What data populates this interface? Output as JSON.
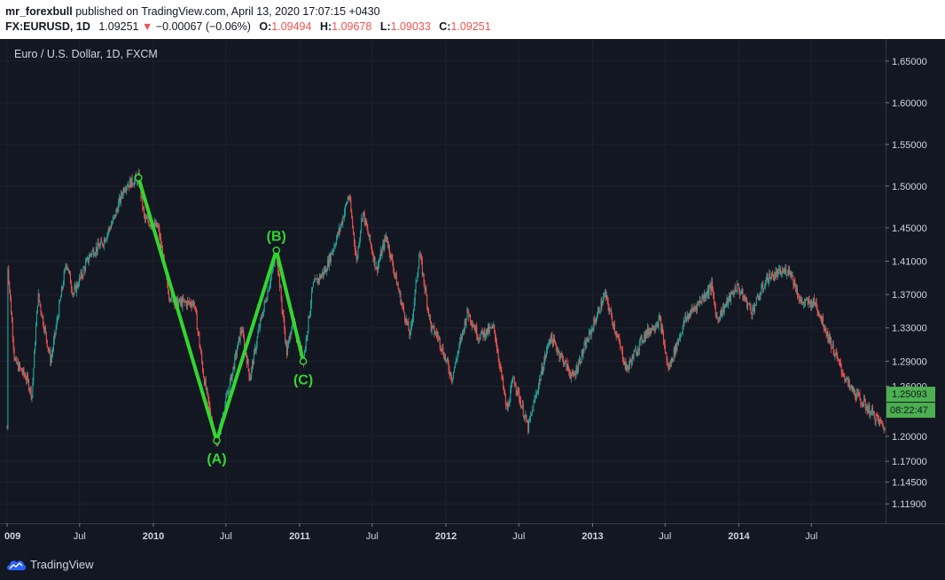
{
  "header": {
    "author": "mr_forexbull",
    "published_text": "published on TradingView.com, April 13, 2020 17:07:15 +0430",
    "symbol": "FX:EURUSD, 1D",
    "last": "1.09251",
    "change": "−0.00067 (−0.06%)",
    "open_label": "O:",
    "open": "1.09494",
    "high_label": "H:",
    "high": "1.09678",
    "low_label": "L:",
    "low": "1.09033",
    "close_label": "C:",
    "close": "1.09251"
  },
  "chart_data": {
    "type": "candlestick",
    "title": "Euro / U.S. Dollar, 1D, FXCM",
    "x_range": [
      "2009-01-01",
      "2014-12-31"
    ],
    "ylim": [
      1.1,
      1.67
    ],
    "y_ticks": [
      "1.65000",
      "1.60000",
      "1.55000",
      "1.50000",
      "1.45000",
      "1.41000",
      "1.37000",
      "1.33000",
      "1.29000",
      "1.26000",
      "1.20000",
      "1.17000",
      "1.14500",
      "1.11900"
    ],
    "x_ticks": [
      {
        "label": "009",
        "date": "2009-01-01"
      },
      {
        "label": "Jul",
        "date": "2009-07-01"
      },
      {
        "label": "2010",
        "date": "2010-01-01"
      },
      {
        "label": "Jul",
        "date": "2010-07-01"
      },
      {
        "label": "2011",
        "date": "2011-01-01"
      },
      {
        "label": "Jul",
        "date": "2011-07-01"
      },
      {
        "label": "2012",
        "date": "2012-01-01"
      },
      {
        "label": "Jul",
        "date": "2012-07-01"
      },
      {
        "label": "2013",
        "date": "2013-01-01"
      },
      {
        "label": "Jul",
        "date": "2013-07-01"
      },
      {
        "label": "2014",
        "date": "2014-01-01"
      },
      {
        "label": "Jul",
        "date": "2014-07-01"
      }
    ],
    "price_path": [
      [
        "2009-01-02",
        1.41
      ],
      [
        "2009-01-20",
        1.29
      ],
      [
        "2009-02-18",
        1.27
      ],
      [
        "2009-03-04",
        1.25
      ],
      [
        "2009-03-19",
        1.37
      ],
      [
        "2009-04-20",
        1.29
      ],
      [
        "2009-05-29",
        1.41
      ],
      [
        "2009-06-15",
        1.37
      ],
      [
        "2009-07-29",
        1.42
      ],
      [
        "2009-08-25",
        1.43
      ],
      [
        "2009-09-24",
        1.46
      ],
      [
        "2009-10-21",
        1.5
      ],
      [
        "2009-11-25",
        1.51
      ],
      [
        "2009-12-10",
        1.46
      ],
      [
        "2010-01-13",
        1.45
      ],
      [
        "2010-02-09",
        1.37
      ],
      [
        "2010-03-04",
        1.36
      ],
      [
        "2010-04-13",
        1.36
      ],
      [
        "2010-05-07",
        1.27
      ],
      [
        "2010-06-07",
        1.19
      ],
      [
        "2010-07-14",
        1.27
      ],
      [
        "2010-08-09",
        1.33
      ],
      [
        "2010-08-30",
        1.27
      ],
      [
        "2010-09-22",
        1.33
      ],
      [
        "2010-11-04",
        1.42
      ],
      [
        "2010-11-30",
        1.3
      ],
      [
        "2010-12-14",
        1.34
      ],
      [
        "2011-01-10",
        1.29
      ],
      [
        "2011-02-03",
        1.38
      ],
      [
        "2011-03-07",
        1.4
      ],
      [
        "2011-04-12",
        1.45
      ],
      [
        "2011-05-04",
        1.49
      ],
      [
        "2011-05-23",
        1.41
      ],
      [
        "2011-06-07",
        1.47
      ],
      [
        "2011-07-12",
        1.4
      ],
      [
        "2011-08-05",
        1.44
      ],
      [
        "2011-09-12",
        1.36
      ],
      [
        "2011-10-04",
        1.32
      ],
      [
        "2011-10-27",
        1.42
      ],
      [
        "2011-11-25",
        1.33
      ],
      [
        "2011-12-12",
        1.32
      ],
      [
        "2012-01-16",
        1.27
      ],
      [
        "2012-02-24",
        1.35
      ],
      [
        "2012-03-22",
        1.32
      ],
      [
        "2012-04-30",
        1.33
      ],
      [
        "2012-06-01",
        1.23
      ],
      [
        "2012-06-18",
        1.27
      ],
      [
        "2012-07-24",
        1.21
      ],
      [
        "2012-09-17",
        1.32
      ],
      [
        "2012-11-13",
        1.27
      ],
      [
        "2013-02-01",
        1.37
      ],
      [
        "2013-03-27",
        1.28
      ],
      [
        "2013-05-08",
        1.32
      ],
      [
        "2013-06-18",
        1.34
      ],
      [
        "2013-07-09",
        1.28
      ],
      [
        "2013-08-20",
        1.34
      ],
      [
        "2013-10-25",
        1.38
      ],
      [
        "2013-11-07",
        1.34
      ],
      [
        "2013-12-27",
        1.38
      ],
      [
        "2014-02-03",
        1.35
      ],
      [
        "2014-03-13",
        1.39
      ],
      [
        "2014-05-08",
        1.4
      ],
      [
        "2014-06-05",
        1.36
      ],
      [
        "2014-07-11",
        1.36
      ],
      [
        "2014-09-05",
        1.29
      ],
      [
        "2014-10-03",
        1.26
      ],
      [
        "2014-11-07",
        1.24
      ],
      [
        "2014-12-31",
        1.21
      ]
    ],
    "wave_points": [
      {
        "label": "",
        "date": "2009-11-25",
        "price": 1.51
      },
      {
        "label": "(A)",
        "date": "2010-06-08",
        "price": 1.195
      },
      {
        "label": "(B)",
        "date": "2010-11-04",
        "price": 1.423
      },
      {
        "label": "(C)",
        "date": "2011-01-10",
        "price": 1.29
      }
    ],
    "wave_color": "#32d62f",
    "bull_color": "#26a69a",
    "bear_color": "#ef5350",
    "price_label": {
      "value": "1.25093",
      "countdown": "08:22:47",
      "color": "#4caf50"
    }
  },
  "footer": {
    "brand": "TradingView"
  }
}
